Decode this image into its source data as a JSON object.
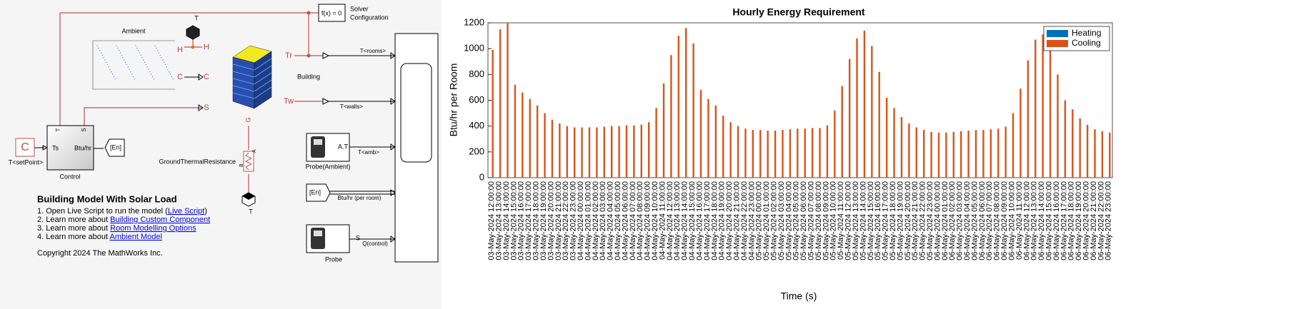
{
  "diagram": {
    "solver": {
      "block": "f(x) = 0",
      "label": [
        "Solver",
        "Configuration"
      ]
    },
    "ambient": "Ambient",
    "ambient_ports": {
      "t": "T",
      "h_in": "H",
      "h_out": "H",
      "c_in": "C",
      "c_out": "C",
      "s": "S"
    },
    "building": {
      "label": "Building",
      "tr": "Tr",
      "tw": "Tw",
      "g": "G"
    },
    "signals": {
      "rooms": "T<rooms>",
      "walls": "T<walls>",
      "amb": "T<amb>",
      "per_room": "Btu/hr (per room)",
      "q": "Q(control)"
    },
    "probe_ambient": {
      "port": "A.T",
      "label": "Probe(Ambient)"
    },
    "from_en": "[En]",
    "probe": {
      "port": "S",
      "label": "Probe"
    },
    "setpoint": {
      "block": "C",
      "label": "T<setPoint>"
    },
    "control": {
      "t": "T",
      "s": "S",
      "ts": "Ts",
      "out": "Btu/hr",
      "label": "Control"
    },
    "goto_en": "[En]",
    "ground": {
      "label": "GroundThermalResistance",
      "a": "A",
      "b": "B",
      "t": "T"
    },
    "notes": {
      "heading": "Building Model With Solar Load",
      "items": [
        {
          "prefix": "1. Open Live Script to run the model (",
          "link": "Live Script",
          "suffix": ")"
        },
        {
          "prefix": "2. Learn more about ",
          "link": "Building Custom Component"
        },
        {
          "prefix": "3. Learn more about ",
          "link": "Room Modelling Options"
        },
        {
          "prefix": "4. Learn more about ",
          "link": "Ambient Model"
        }
      ],
      "copyright": "Copyright 2024 The MathWorks Inc."
    }
  },
  "chart_data": {
    "type": "bar",
    "title": "Hourly Energy Requirement",
    "ylabel": "Btu/hr per Room",
    "xlabel": "Time (s)",
    "categories": [
      "03-May-2024 12:00:00",
      "03-May-2024 13:00:00",
      "03-May-2024 14:00:00",
      "03-May-2024 15:00:00",
      "03-May-2024 16:00:00",
      "03-May-2024 17:00:00",
      "03-May-2024 18:00:00",
      "03-May-2024 19:00:00",
      "03-May-2024 20:00:00",
      "03-May-2024 21:00:00",
      "03-May-2024 22:00:00",
      "03-May-2024 23:00:00",
      "04-May-2024 00:00:00",
      "04-May-2024 01:00:00",
      "04-May-2024 02:00:00",
      "04-May-2024 03:00:00",
      "04-May-2024 04:00:00",
      "04-May-2024 05:00:00",
      "04-May-2024 06:00:00",
      "04-May-2024 07:00:00",
      "04-May-2024 08:00:00",
      "04-May-2024 09:00:00",
      "04-May-2024 10:00:00",
      "04-May-2024 11:00:00",
      "04-May-2024 12:00:00",
      "04-May-2024 13:00:00",
      "04-May-2024 14:00:00",
      "04-May-2024 15:00:00",
      "04-May-2024 16:00:00",
      "04-May-2024 17:00:00",
      "04-May-2024 18:00:00",
      "04-May-2024 19:00:00",
      "04-May-2024 20:00:00",
      "04-May-2024 21:00:00",
      "04-May-2024 22:00:00",
      "04-May-2024 23:00:00",
      "05-May-2024 00:00:00",
      "05-May-2024 01:00:00",
      "05-May-2024 02:00:00",
      "05-May-2024 03:00:00",
      "05-May-2024 04:00:00",
      "05-May-2024 05:00:00",
      "05-May-2024 06:00:00",
      "05-May-2024 07:00:00",
      "05-May-2024 08:00:00",
      "05-May-2024 09:00:00",
      "05-May-2024 10:00:00",
      "05-May-2024 11:00:00",
      "05-May-2024 12:00:00",
      "05-May-2024 13:00:00",
      "05-May-2024 14:00:00",
      "05-May-2024 15:00:00",
      "05-May-2024 16:00:00",
      "05-May-2024 17:00:00",
      "05-May-2024 18:00:00",
      "05-May-2024 19:00:00",
      "05-May-2024 20:00:00",
      "05-May-2024 21:00:00",
      "05-May-2024 22:00:00",
      "05-May-2024 23:00:00",
      "06-May-2024 00:00:00",
      "06-May-2024 01:00:00",
      "06-May-2024 02:00:00",
      "06-May-2024 03:00:00",
      "06-May-2024 04:00:00",
      "06-May-2024 05:00:00",
      "06-May-2024 06:00:00",
      "06-May-2024 07:00:00",
      "06-May-2024 08:00:00",
      "06-May-2024 09:00:00",
      "06-May-2024 10:00:00",
      "06-May-2024 11:00:00",
      "06-May-2024 12:00:00",
      "06-May-2024 13:00:00",
      "06-May-2024 14:00:00",
      "06-May-2024 15:00:00",
      "06-May-2024 16:00:00",
      "06-May-2024 17:00:00",
      "06-May-2024 18:00:00",
      "06-May-2024 19:00:00",
      "06-May-2024 20:00:00",
      "06-May-2024 21:00:00",
      "06-May-2024 22:00:00",
      "06-May-2024 23:00:00"
    ],
    "series": [
      {
        "name": "Heating",
        "color": "#0072bd",
        "values": [
          0,
          0,
          0,
          0,
          0,
          0,
          0,
          0,
          0,
          0,
          0,
          0,
          0,
          0,
          0,
          0,
          0,
          0,
          0,
          0,
          0,
          0,
          0,
          0,
          0,
          0,
          0,
          0,
          0,
          0,
          0,
          0,
          0,
          0,
          0,
          0,
          0,
          0,
          0,
          0,
          0,
          0,
          0,
          0,
          0,
          0,
          0,
          0,
          0,
          0,
          0,
          0,
          0,
          0,
          0,
          0,
          0,
          0,
          0,
          0,
          0,
          0,
          0,
          0,
          0,
          0,
          0,
          0,
          0,
          0,
          0,
          0,
          0,
          0,
          0,
          0,
          0,
          0,
          0,
          0,
          0,
          0,
          0,
          0
        ]
      },
      {
        "name": "Cooling",
        "color": "#d95319",
        "values": [
          990,
          1150,
          1200,
          720,
          660,
          610,
          560,
          500,
          450,
          420,
          400,
          390,
          390,
          390,
          390,
          395,
          400,
          400,
          405,
          405,
          410,
          430,
          540,
          730,
          950,
          1100,
          1160,
          1040,
          680,
          610,
          560,
          480,
          430,
          400,
          380,
          370,
          370,
          365,
          365,
          370,
          375,
          380,
          380,
          385,
          385,
          405,
          520,
          710,
          920,
          1080,
          1140,
          1020,
          820,
          620,
          540,
          470,
          420,
          390,
          370,
          355,
          350,
          350,
          355,
          360,
          365,
          370,
          370,
          375,
          380,
          395,
          500,
          690,
          910,
          1070,
          1110,
          1080,
          800,
          600,
          530,
          460,
          410,
          375,
          360,
          350
        ]
      }
    ],
    "ylim": [
      0,
      1200
    ],
    "yticks": [
      0,
      200,
      400,
      600,
      800,
      1000,
      1200
    ],
    "legend": "northeast"
  }
}
